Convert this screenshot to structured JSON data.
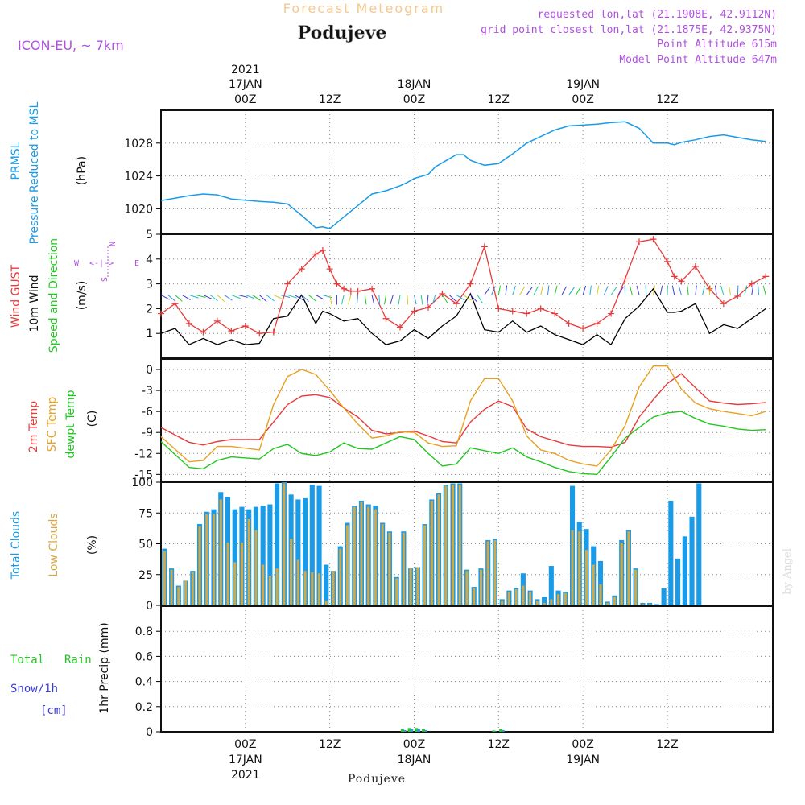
{
  "header": {
    "title": "Forecast Meteogram",
    "place": "Podujeve",
    "model": "ICON-EU, ~ 7km",
    "requested": "requested lon,lat (21.1908E, 42.9112N)",
    "closest": "grid point closest lon,lat (21.1875E, 42.9375N)",
    "point_altitude": "Point Altitude 615m",
    "model_altitude": "Model Point Altitude 647m",
    "footer_place": "Podujeve",
    "watermark": "by Angel"
  },
  "time_axis": {
    "top": [
      {
        "x": 12,
        "l1": "2021",
        "l2": "17JAN",
        "l3": "00Z"
      },
      {
        "x": 24,
        "l1": "",
        "l2": "",
        "l3": "12Z"
      },
      {
        "x": 36,
        "l1": "",
        "l2": "18JAN",
        "l3": "00Z"
      },
      {
        "x": 48,
        "l1": "",
        "l2": "",
        "l3": "12Z"
      },
      {
        "x": 60,
        "l1": "",
        "l2": "19JAN",
        "l3": "00Z"
      },
      {
        "x": 72,
        "l1": "",
        "l2": "",
        "l3": "12Z"
      }
    ],
    "bottom": [
      {
        "x": 12,
        "l1": "00Z",
        "l2": "17JAN",
        "l3": "2021"
      },
      {
        "x": 24,
        "l1": "12Z",
        "l2": "",
        "l3": ""
      },
      {
        "x": 36,
        "l1": "00Z",
        "l2": "18JAN",
        "l3": ""
      },
      {
        "x": 48,
        "l1": "12Z",
        "l2": "",
        "l3": ""
      },
      {
        "x": 60,
        "l1": "00Z",
        "l2": "19JAN",
        "l3": ""
      },
      {
        "x": 72,
        "l1": "12Z",
        "l2": "",
        "l3": ""
      }
    ]
  },
  "colors": {
    "pressure": "#1a9be8",
    "gust": "#e83a3a",
    "wind": "#000000",
    "sfc_temp": "#e8a020",
    "dewpt": "#1ec81e",
    "total_cloud": "#1a9be8",
    "low_cloud": "#d4a845",
    "rain": "#1ec81e",
    "snow": "#3a3ad8",
    "purple": "#b050e0",
    "title": "#f5c890"
  },
  "panels": {
    "pressure": {
      "labels": [
        "PRMSL",
        "Pressure Reduced to MSL"
      ],
      "unit": "(hPa)"
    },
    "wind": {
      "labels": [
        "Wind GUST",
        "10m Wind",
        "Speed and Direction"
      ],
      "unit": "(m/s)",
      "compass": {
        "n": "N",
        "s": "S",
        "e": "E",
        "w": "W",
        "arrow": "<-|->"
      }
    },
    "temp": {
      "labels": [
        "2m Temp",
        "SFC Temp",
        "dewpt Temp"
      ],
      "unit": "(C)"
    },
    "clouds": {
      "labels": [
        "Total Clouds",
        "Low Clouds"
      ],
      "unit": "(%)"
    },
    "precip": {
      "labels": [
        "Total",
        "Rain",
        "Snow/1h",
        "[cm]"
      ],
      "unit": "1hr Precip (mm)"
    }
  },
  "chart_data": [
    {
      "type": "line",
      "name": "pressure",
      "ylim": [
        1017,
        1032
      ],
      "yticks": [
        1020,
        1024,
        1028
      ],
      "series": [
        {
          "name": "PRMSL",
          "x": [
            0,
            4,
            6,
            8,
            10,
            14,
            16,
            18,
            20,
            22,
            23,
            24,
            26,
            28,
            30,
            32,
            34,
            35,
            36,
            38,
            39,
            40,
            42,
            43,
            44,
            46,
            48,
            50,
            52,
            54,
            56,
            58,
            60,
            62,
            64,
            66,
            68,
            70,
            72,
            73,
            74,
            76,
            78,
            80,
            82,
            84,
            86
          ],
          "y": [
            1021,
            1021.6,
            1021.8,
            1021.7,
            1021.2,
            1020.9,
            1020.8,
            1020.6,
            1019.2,
            1017.7,
            1017.8,
            1017.6,
            1019,
            1020.4,
            1021.8,
            1022.2,
            1022.8,
            1023.2,
            1023.7,
            1024.2,
            1025.1,
            1025.6,
            1026.6,
            1026.6,
            1025.9,
            1025.3,
            1025.5,
            1026.7,
            1028,
            1028.8,
            1029.6,
            1030.1,
            1030.2,
            1030.3,
            1030.5,
            1030.6,
            1029.8,
            1028,
            1028,
            1027.8,
            1028.1,
            1028.4,
            1028.8,
            1029,
            1028.7,
            1028.4,
            1028.2
          ]
        }
      ]
    },
    {
      "type": "line",
      "name": "wind",
      "ylim": [
        0,
        5
      ],
      "yticks": [
        1,
        2,
        3,
        4,
        5
      ],
      "series": [
        {
          "name": "Wind GUST",
          "marker": "+",
          "x": [
            0,
            2,
            4,
            6,
            8,
            10,
            12,
            14,
            16,
            18,
            20,
            22,
            23,
            24,
            25,
            26,
            27,
            28,
            30,
            32,
            34,
            36,
            38,
            40,
            42,
            44,
            46,
            48,
            50,
            52,
            54,
            56,
            58,
            60,
            62,
            64,
            66,
            68,
            70,
            72,
            73,
            74,
            76,
            78,
            80,
            82,
            84,
            86
          ],
          "y": [
            1.8,
            2.2,
            1.4,
            1.05,
            1.5,
            1.1,
            1.3,
            1.0,
            1.05,
            3.0,
            3.6,
            4.2,
            4.35,
            3.6,
            3.0,
            2.8,
            2.7,
            2.7,
            2.8,
            1.6,
            1.25,
            1.9,
            2.05,
            2.6,
            2.2,
            3.0,
            4.5,
            2.0,
            1.9,
            1.8,
            2.0,
            1.8,
            1.4,
            1.2,
            1.4,
            1.8,
            3.2,
            4.7,
            4.8,
            3.9,
            3.3,
            3.1,
            3.7,
            2.8,
            2.2,
            2.5,
            3.0,
            3.3
          ]
        },
        {
          "name": "10m Wind",
          "x": [
            0,
            2,
            4,
            6,
            8,
            10,
            12,
            14,
            16,
            18,
            20,
            22,
            23,
            24,
            26,
            28,
            30,
            32,
            34,
            36,
            38,
            40,
            42,
            44,
            46,
            48,
            50,
            52,
            54,
            56,
            58,
            60,
            62,
            64,
            66,
            68,
            70,
            72,
            73,
            74,
            76,
            78,
            80,
            82,
            84,
            86
          ],
          "y": [
            1,
            1.2,
            0.55,
            0.8,
            0.55,
            0.75,
            0.55,
            0.6,
            1.6,
            1.7,
            2.55,
            1.4,
            1.9,
            1.8,
            1.5,
            1.6,
            1.0,
            0.55,
            0.7,
            1.15,
            0.8,
            1.3,
            1.7,
            2.6,
            1.15,
            1.05,
            1.5,
            1.05,
            1.3,
            0.95,
            0.75,
            0.55,
            0.95,
            0.55,
            1.6,
            2.1,
            2.8,
            1.85,
            1.85,
            1.9,
            2.2,
            1.0,
            1.35,
            1.2,
            1.6,
            2.0
          ]
        }
      ]
    },
    {
      "type": "line",
      "name": "temperature",
      "ylim": [
        -16,
        1.5
      ],
      "yticks": [
        -15,
        -12,
        -9,
        -6,
        -3,
        0
      ],
      "series": [
        {
          "name": "2m Temp",
          "x": [
            0,
            4,
            6,
            8,
            10,
            14,
            16,
            18,
            20,
            22,
            24,
            26,
            28,
            30,
            32,
            34,
            36,
            38,
            40,
            42,
            44,
            46,
            48,
            50,
            52,
            54,
            56,
            58,
            60,
            62,
            64,
            66,
            68,
            70,
            72,
            74,
            76,
            78,
            80,
            82,
            84,
            86
          ],
          "y": [
            -8.3,
            -10.4,
            -10.8,
            -10.3,
            -10.0,
            -10.0,
            -7.5,
            -5.0,
            -3.8,
            -3.6,
            -4.0,
            -5.5,
            -6.8,
            -8.7,
            -9.2,
            -9.0,
            -8.8,
            -9.5,
            -10.3,
            -10.5,
            -7.5,
            -5.7,
            -4.5,
            -5.3,
            -8.5,
            -9.6,
            -10.2,
            -10.8,
            -11.0,
            -11.0,
            -11.1,
            -10.4,
            -6.8,
            -4.3,
            -2.0,
            -0.6,
            -2.6,
            -4.5,
            -4.8,
            -5.0,
            -4.9,
            -4.7
          ]
        },
        {
          "name": "SFC Temp",
          "x": [
            0,
            4,
            6,
            8,
            10,
            14,
            16,
            18,
            20,
            22,
            24,
            26,
            28,
            30,
            32,
            34,
            36,
            38,
            40,
            42,
            44,
            46,
            48,
            50,
            52,
            54,
            56,
            58,
            60,
            62,
            64,
            66,
            68,
            70,
            72,
            74,
            76,
            78,
            80,
            82,
            84,
            86
          ],
          "y": [
            -9.6,
            -13.2,
            -13.0,
            -11.0,
            -11.0,
            -11.5,
            -5.0,
            -1.0,
            0.0,
            -0.7,
            -3.0,
            -5.5,
            -7.8,
            -9.8,
            -9.5,
            -8.9,
            -9.0,
            -10.5,
            -11.0,
            -10.9,
            -4.5,
            -1.3,
            -1.3,
            -4.5,
            -9.5,
            -11.5,
            -12.0,
            -13.0,
            -13.5,
            -13.8,
            -11.5,
            -8.0,
            -2.5,
            0.5,
            0.5,
            -2.8,
            -4.8,
            -5.6,
            -6.0,
            -6.3,
            -6.6,
            -6.0
          ]
        },
        {
          "name": "dewpt Temp",
          "x": [
            0,
            4,
            6,
            8,
            10,
            14,
            16,
            18,
            20,
            22,
            24,
            26,
            28,
            30,
            32,
            34,
            36,
            38,
            40,
            42,
            44,
            46,
            48,
            50,
            52,
            54,
            56,
            58,
            60,
            62,
            64,
            66,
            68,
            70,
            72,
            74,
            76,
            78,
            80,
            82,
            84,
            86
          ],
          "y": [
            -10.3,
            -14.0,
            -14.2,
            -13.0,
            -12.5,
            -12.8,
            -11.3,
            -10.7,
            -12.0,
            -12.3,
            -11.8,
            -10.5,
            -11.3,
            -11.4,
            -10.5,
            -9.6,
            -10.0,
            -12.0,
            -13.8,
            -13.5,
            -11.2,
            -11.6,
            -12.0,
            -11.2,
            -12.5,
            -13.2,
            -14.0,
            -14.6,
            -14.9,
            -15.0,
            -12.5,
            -9.8,
            -8.3,
            -6.8,
            -6.2,
            -6.0,
            -7.0,
            -7.8,
            -8.1,
            -8.5,
            -8.7,
            -8.6
          ]
        }
      ]
    },
    {
      "type": "bar",
      "name": "clouds",
      "ylim": [
        0,
        100
      ],
      "yticks": [
        0,
        25,
        50,
        75,
        100
      ],
      "x_start": 0,
      "series": [
        {
          "name": "Total Clouds",
          "values": [
            46,
            30,
            16,
            20,
            28,
            66,
            76,
            78,
            92,
            88,
            78,
            80,
            78,
            80,
            81,
            82,
            99,
            100,
            90,
            86,
            87,
            98,
            97,
            33,
            28,
            48,
            67,
            81,
            85,
            82,
            81,
            67,
            60,
            23,
            60,
            30,
            31,
            66,
            86,
            91,
            98,
            99,
            99,
            29,
            15,
            30,
            53,
            54,
            5,
            12,
            14,
            26,
            12,
            5,
            7,
            32,
            12,
            11,
            97,
            68,
            62,
            48,
            36,
            3,
            8,
            53,
            61,
            30,
            2,
            2,
            1,
            14,
            85,
            38,
            56,
            72,
            99
          ]
        },
        {
          "name": "Low Clouds",
          "values": [
            44,
            29,
            15,
            20,
            27,
            64,
            74,
            74,
            86,
            51,
            35,
            51,
            70,
            61,
            33,
            24,
            30,
            99,
            54,
            37,
            28,
            27,
            26,
            4,
            28,
            46,
            65,
            80,
            84,
            80,
            78,
            66,
            59,
            22,
            59,
            30,
            31,
            65,
            85,
            90,
            97,
            98,
            98,
            28,
            14,
            29,
            52,
            53,
            4,
            11,
            13,
            16,
            11,
            4,
            2,
            5,
            9,
            10,
            61,
            60,
            45,
            33,
            17,
            2,
            7,
            51,
            60,
            29,
            1,
            1,
            0,
            0,
            0,
            0,
            0,
            0,
            0
          ]
        }
      ]
    },
    {
      "type": "bar",
      "name": "precip",
      "ylim": [
        0,
        1.0
      ],
      "yticks": [
        0,
        0.2,
        0.4,
        0.6,
        0.8
      ],
      "series": [
        {
          "name": "Total",
          "x": [
            34,
            35,
            36,
            37,
            47,
            48
          ],
          "values": [
            0.02,
            0.03,
            0.03,
            0.02,
            0.01,
            0.02
          ]
        }
      ]
    }
  ]
}
